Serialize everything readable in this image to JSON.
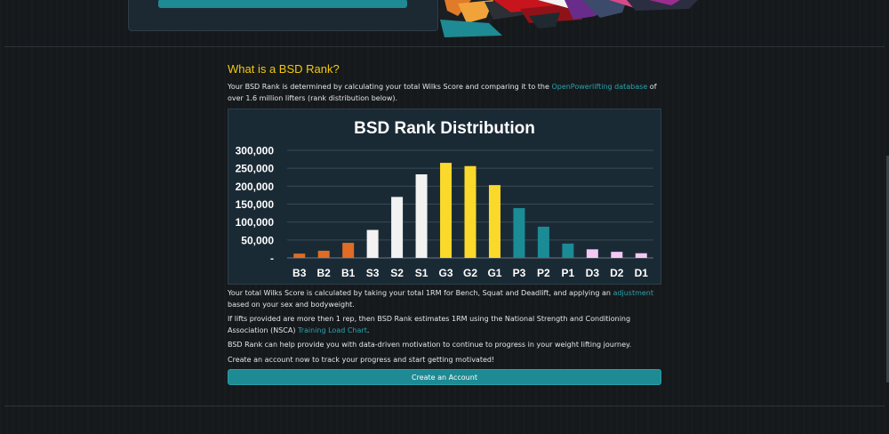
{
  "colors": {
    "accent": "#1e8a93",
    "title": "#f2c811",
    "link": "#2ba3ad",
    "bronze": "#e06c25",
    "silver": "#f2f2f2",
    "gold": "#fbd92b",
    "platinum": "#1b8b96",
    "diamond": "#f4c7f4"
  },
  "section": {
    "title": "What is a BSD Rank?",
    "intro": {
      "before": "Your BSD Rank is determined by calculating your total Wilks Score and comparing it to the ",
      "link": "OpenPowerlifting database",
      "after": " of over 1.6 million lifters (rank distribution below)."
    },
    "wilks": {
      "before": "Your total Wilks Score is calculated by taking your total 1RM for Bench, Squat and Deadlift, and applying an ",
      "link": "adjustment",
      "after": " based on your sex and bodyweight."
    },
    "nsca": {
      "before": "If lifts provided are more then 1 rep, then BSD Rank estimates 1RM using the National Strength and Conditioning Association (NSCA) ",
      "link": "Training Load Chart",
      "after": "."
    },
    "motivation": "BSD Rank can help provide you with data-driven motivation to continue to progress in your weight lifting journey.",
    "cta_text": "Create an account now to track your progress and start getting motivated!",
    "cta_button": "Create an Account"
  },
  "chart_data": {
    "type": "bar",
    "title": "BSD Rank Distribution",
    "xlabel": "",
    "ylabel": "",
    "categories": [
      "B3",
      "B2",
      "B1",
      "S3",
      "S2",
      "S1",
      "G3",
      "G2",
      "G1",
      "P3",
      "P2",
      "P1",
      "D3",
      "D2",
      "D1"
    ],
    "values": [
      12000,
      20000,
      42000,
      78000,
      170000,
      233000,
      265000,
      256000,
      203000,
      139000,
      87000,
      40000,
      24000,
      17000,
      13000
    ],
    "bar_colors": [
      "#e06c25",
      "#e06c25",
      "#e06c25",
      "#f2f2f2",
      "#f2f2f2",
      "#f2f2f2",
      "#fbd92b",
      "#fbd92b",
      "#fbd92b",
      "#1b8b96",
      "#1b8b96",
      "#1b8b96",
      "#f4c7f4",
      "#f4c7f4",
      "#f4c7f4"
    ],
    "y_ticks": [
      {
        "value": 0,
        "label": "-"
      },
      {
        "value": 50000,
        "label": "50,000"
      },
      {
        "value": 100000,
        "label": "100,000"
      },
      {
        "value": 150000,
        "label": "150,000"
      },
      {
        "value": 200000,
        "label": "200,000"
      },
      {
        "value": 250000,
        "label": "250,000"
      },
      {
        "value": 300000,
        "label": "300,000"
      }
    ],
    "ylim": [
      0,
      300000
    ],
    "grid": true,
    "legend": "none"
  }
}
